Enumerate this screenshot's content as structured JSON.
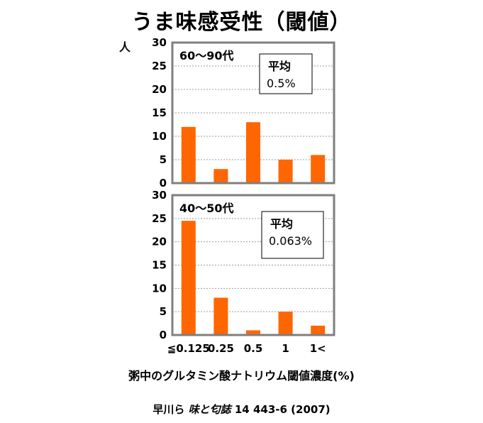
{
  "title": "うま味感受性（閾値）",
  "x_axis_title": "粥中のグルタミン酸ナトリウム閾値濃度(%)",
  "citation": {
    "authors": "早川ら",
    "journal": "味と匂誌",
    "details": "14 443-6 (2007)"
  },
  "colors": {
    "bar": "#ff6600",
    "axes": "#7f7f7f",
    "grid": "#9a9a9a"
  },
  "chart_data": [
    {
      "type": "bar",
      "panel_label": "60〜90代",
      "ylabel": "人",
      "categories": [
        "≦0.125",
        "0.25",
        "0.5",
        "1",
        "1<"
      ],
      "values": [
        12,
        3,
        13,
        5,
        6
      ],
      "ylim": [
        0,
        30
      ],
      "yticks": [
        0,
        5,
        10,
        15,
        20,
        25,
        30
      ],
      "grid": true,
      "annotation": {
        "title": "平均",
        "value": "0.5%"
      }
    },
    {
      "type": "bar",
      "panel_label": "40〜50代",
      "ylabel": "",
      "categories": [
        "≦0.125",
        "0.25",
        "0.5",
        "1",
        "1<"
      ],
      "values": [
        24.5,
        8,
        1,
        5,
        2
      ],
      "ylim": [
        0,
        30
      ],
      "yticks": [
        0,
        5,
        10,
        15,
        20,
        25,
        30
      ],
      "grid": true,
      "annotation": {
        "title": "平均",
        "value": "0.063%"
      }
    }
  ]
}
